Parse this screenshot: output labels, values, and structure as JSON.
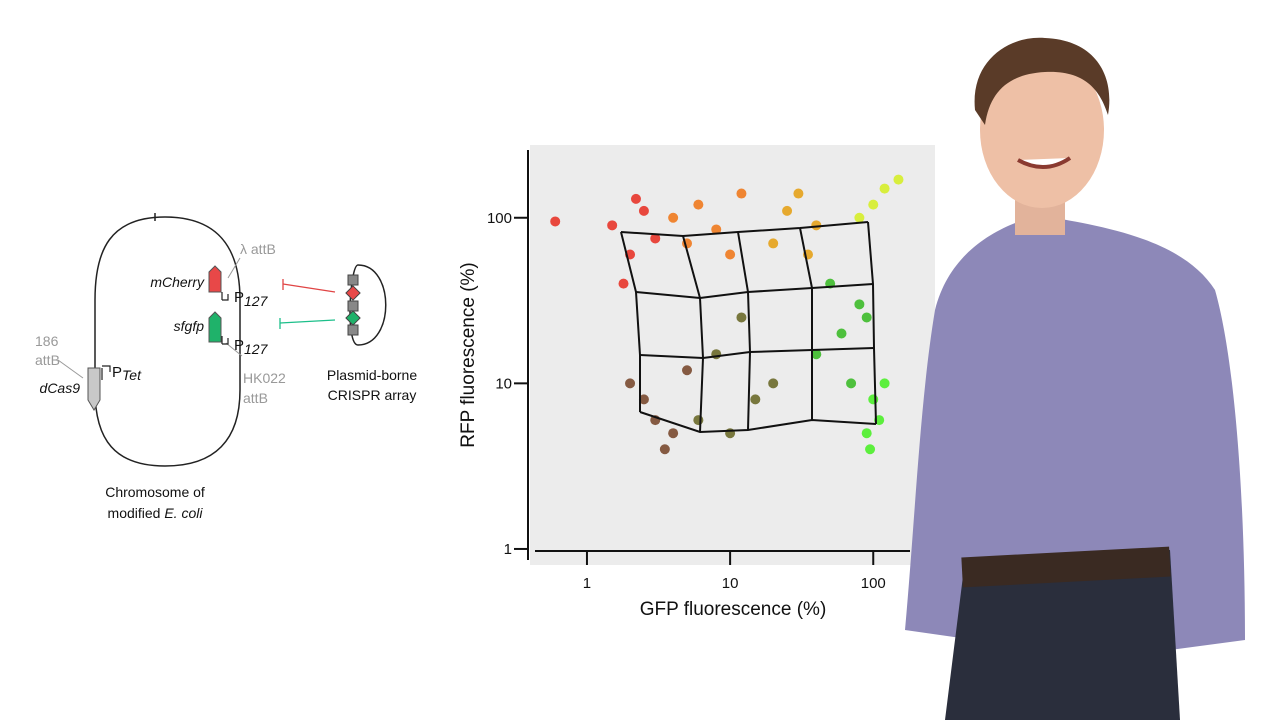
{
  "diagram": {
    "site_186": [
      "186",
      "attB"
    ],
    "dcas9": "dCas9",
    "p_tet": {
      "letter": "P",
      "sub": "Tet"
    },
    "mcherry": "mCherry",
    "lambda_attb": "λ attB",
    "p127_top": {
      "letter": "P",
      "sub": "127"
    },
    "sfgfp": "sfgfp",
    "p127_bottom": {
      "letter": "P",
      "sub": "127"
    },
    "hk022": [
      "HK022",
      "attB"
    ],
    "plasmid": [
      "Plasmid-borne",
      "CRISPR array"
    ],
    "chromosome": {
      "line1": "Chromosome of",
      "line2": "modified ",
      "species": "E. coli"
    }
  },
  "chart_data": {
    "type": "scatter",
    "xlabel": "GFP fluorescence (%)",
    "ylabel": "RFP fluorescence (%)",
    "xscale": "log",
    "yscale": "log",
    "xlim": [
      0.4,
      270
    ],
    "ylim": [
      0.8,
      275
    ],
    "xticks": [
      1,
      10,
      100
    ],
    "yticks": [
      1,
      10,
      100
    ],
    "series": [
      {
        "color": "#e8352a",
        "x": [
          1.5,
          2,
          2.5,
          3,
          1.8,
          2.2,
          0.6
        ],
        "values": [
          90,
          60,
          110,
          75,
          40,
          130,
          95
        ]
      },
      {
        "color": "#ef7a1e",
        "x": [
          4,
          6,
          8,
          12,
          5,
          10
        ],
        "values": [
          100,
          120,
          85,
          140,
          70,
          60
        ]
      },
      {
        "color": "#e6a21a",
        "x": [
          25,
          30,
          40,
          20,
          35
        ],
        "values": [
          110,
          140,
          90,
          70,
          60
        ]
      },
      {
        "color": "#7a4a30",
        "x": [
          2.5,
          3,
          4,
          2,
          3.5,
          5
        ],
        "values": [
          8,
          6,
          5,
          10,
          4,
          12
        ]
      },
      {
        "color": "#6b6a2a",
        "x": [
          6,
          10,
          15,
          8,
          12,
          20
        ],
        "values": [
          6,
          5,
          8,
          15,
          25,
          10
        ]
      },
      {
        "color": "#3dbb2a",
        "x": [
          40,
          60,
          80,
          50,
          70,
          90
        ],
        "values": [
          15,
          20,
          30,
          40,
          10,
          25
        ]
      },
      {
        "color": "#4cf02a",
        "x": [
          90,
          100,
          110,
          95,
          120
        ],
        "values": [
          5,
          8,
          6,
          4,
          10
        ]
      },
      {
        "color": "#d6ee2a",
        "x": [
          80,
          100,
          120,
          150
        ],
        "values": [
          100,
          120,
          150,
          170
        ]
      }
    ]
  }
}
